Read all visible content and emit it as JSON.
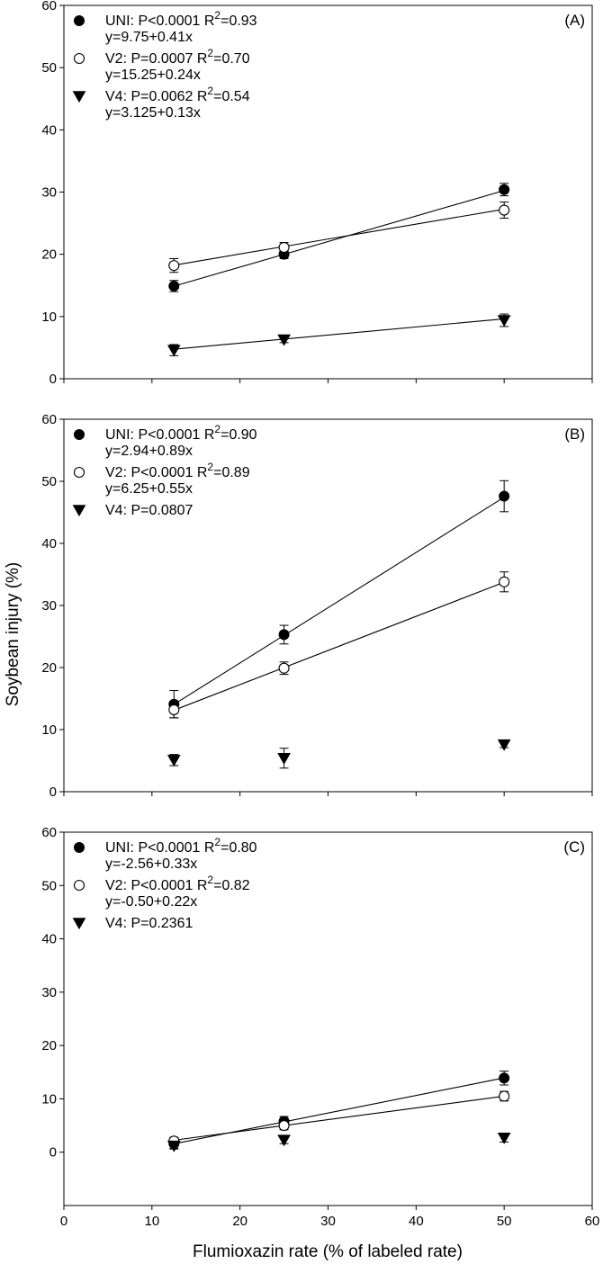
{
  "figure": {
    "ylabel": "Soybean injury (%)",
    "xlabel": "Flumioxazin rate (% of labeled rate)",
    "x_ticks": [
      "0",
      "10",
      "20",
      "30",
      "40",
      "50",
      "60"
    ]
  },
  "chart_data": [
    {
      "type": "line",
      "panel_label": "(A)",
      "xlim": [
        0,
        60
      ],
      "ylim": [
        0,
        60
      ],
      "y_ticks": [
        "0",
        "10",
        "20",
        "30",
        "40",
        "50",
        "60"
      ],
      "x": [
        12.5,
        25,
        50
      ],
      "legend": [
        {
          "line1": "UNI: P<0.0001  R",
          "sup": "2",
          "tail": "=0.93",
          "line2": "y=9.75+0.41x"
        },
        {
          "line1": "V2: P=0.0007  R",
          "sup": "2",
          "tail": "=0.70",
          "line2": "y=15.25+0.24x"
        },
        {
          "line1": "V4: P=0.0062  R",
          "sup": "2",
          "tail": "=0.54",
          "line2": "y=3.125+0.13x"
        }
      ],
      "series": [
        {
          "name": "UNI",
          "marker": "filled-circle",
          "values": [
            14.9,
            20.0,
            30.4
          ],
          "errors": [
            0.9,
            0.7,
            1.0
          ],
          "fit": [
            9.75,
            0.41
          ]
        },
        {
          "name": "V2",
          "marker": "open-circle",
          "values": [
            18.2,
            21.1,
            27.1
          ],
          "errors": [
            1.1,
            0.8,
            1.3
          ],
          "fit": [
            15.25,
            0.24
          ]
        },
        {
          "name": "V4",
          "marker": "filled-triangle-down",
          "values": [
            4.6,
            6.3,
            9.4
          ],
          "errors": [
            0.9,
            0.5,
            1.0
          ],
          "fit": [
            3.125,
            0.13
          ]
        }
      ]
    },
    {
      "type": "line",
      "panel_label": "(B)",
      "xlim": [
        0,
        60
      ],
      "ylim": [
        0,
        60
      ],
      "y_ticks": [
        "0",
        "10",
        "20",
        "30",
        "40",
        "50",
        "60"
      ],
      "x": [
        12.5,
        25,
        50
      ],
      "legend": [
        {
          "line1": "UNI: P<0.0001  R",
          "sup": "2",
          "tail": "=0.90",
          "line2": "y=2.94+0.89x"
        },
        {
          "line1": "V2: P<0.0001  R",
          "sup": "2",
          "tail": "=0.89",
          "line2": "y=6.25+0.55x"
        },
        {
          "line1": "V4: P=0.0807",
          "sup": "",
          "tail": "",
          "line2": ""
        }
      ],
      "series": [
        {
          "name": "UNI",
          "marker": "filled-circle",
          "values": [
            14.1,
            25.3,
            47.6
          ],
          "errors": [
            2.2,
            1.5,
            2.5
          ],
          "fit": [
            2.94,
            0.89
          ]
        },
        {
          "name": "V2",
          "marker": "open-circle",
          "values": [
            13.2,
            19.9,
            33.8
          ],
          "errors": [
            1.3,
            1.0,
            1.6
          ],
          "fit": [
            6.25,
            0.55
          ]
        },
        {
          "name": "V4",
          "marker": "filled-triangle-down",
          "values": [
            5.1,
            5.4,
            7.6
          ],
          "errors": [
            0.9,
            1.6,
            0.5
          ],
          "fit": null
        }
      ]
    },
    {
      "type": "line",
      "panel_label": "(C)",
      "xlim": [
        0,
        60
      ],
      "ylim": [
        -10,
        60
      ],
      "y_ticks": [
        "0",
        "10",
        "20",
        "30",
        "40",
        "50",
        "60"
      ],
      "x": [
        12.5,
        25,
        50
      ],
      "legend": [
        {
          "line1": "UNI: P<0.0001  R",
          "sup": "2",
          "tail": "=0.80",
          "line2": "y=-2.56+0.33x"
        },
        {
          "line1": "V2: P<0.0001  R",
          "sup": "2",
          "tail": "=0.82",
          "line2": "y=-0.50+0.22x"
        },
        {
          "line1": "V4: P=0.2361",
          "sup": "",
          "tail": "",
          "line2": ""
        }
      ],
      "series": [
        {
          "name": "UNI",
          "marker": "filled-circle",
          "values": [
            1.6,
            5.8,
            13.9
          ],
          "errors": [
            0.9,
            0.9,
            1.3
          ],
          "fit": [
            -2.56,
            0.33
          ]
        },
        {
          "name": "V2",
          "marker": "open-circle",
          "values": [
            2.1,
            5.0,
            10.5
          ],
          "errors": [
            0.7,
            0.8,
            0.9
          ],
          "fit": [
            -0.5,
            0.22
          ]
        },
        {
          "name": "V4",
          "marker": "filled-triangle-down",
          "values": [
            1.2,
            2.3,
            2.7
          ],
          "errors": [
            0.6,
            0.7,
            0.8
          ],
          "fit": null
        }
      ]
    }
  ]
}
